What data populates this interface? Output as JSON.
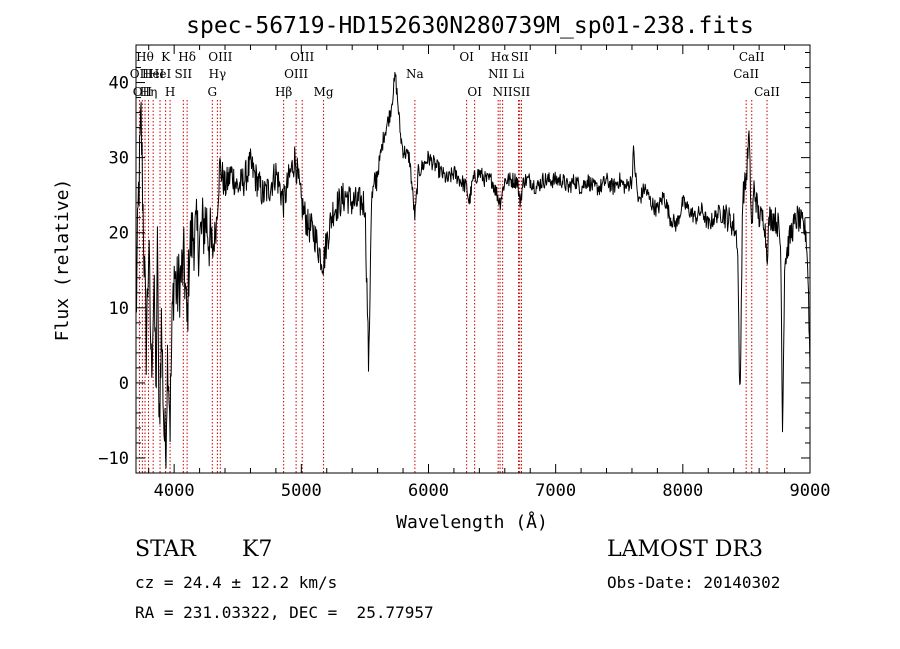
{
  "chart_data": {
    "type": "line",
    "title": "spec-56719-HD152630N280739M_sp01-238.fits",
    "xlabel": "Wavelength (Å)",
    "ylabel": "Flux (relative)",
    "xlim": [
      3700,
      9000
    ],
    "ylim": [
      -12,
      45
    ],
    "xticks": [
      4000,
      5000,
      6000,
      7000,
      8000,
      9000
    ],
    "xtick_labels": [
      "4000",
      "5000",
      "6000",
      "7000",
      "8000",
      "9000"
    ],
    "yticks": [
      -10,
      0,
      10,
      20,
      30,
      40
    ],
    "ytick_labels": [
      "−10",
      "0",
      "10",
      "20",
      "30",
      "40"
    ],
    "series": [
      {
        "name": "spectrum",
        "anchors": [
          [
            3700,
            8
          ],
          [
            3720,
            25
          ],
          [
            3740,
            35
          ],
          [
            3760,
            20
          ],
          [
            3780,
            5
          ],
          [
            3800,
            18
          ],
          [
            3820,
            2
          ],
          [
            3840,
            12
          ],
          [
            3860,
            0
          ],
          [
            3870,
            22
          ],
          [
            3880,
            -8
          ],
          [
            3900,
            8
          ],
          [
            3920,
            -6
          ],
          [
            3933,
            -9
          ],
          [
            3950,
            5
          ],
          [
            3968,
            -5
          ],
          [
            3985,
            8
          ],
          [
            4000,
            15
          ],
          [
            4020,
            12
          ],
          [
            4050,
            14
          ],
          [
            4080,
            16
          ],
          [
            4101,
            7
          ],
          [
            4120,
            18
          ],
          [
            4150,
            20
          ],
          [
            4200,
            19
          ],
          [
            4250,
            22
          ],
          [
            4300,
            17
          ],
          [
            4330,
            21
          ],
          [
            4360,
            29
          ],
          [
            4400,
            26
          ],
          [
            4450,
            28
          ],
          [
            4500,
            26
          ],
          [
            4550,
            27
          ],
          [
            4600,
            29
          ],
          [
            4650,
            27
          ],
          [
            4700,
            25
          ],
          [
            4750,
            26
          ],
          [
            4800,
            28
          ],
          [
            4861,
            24
          ],
          [
            4900,
            27
          ],
          [
            4950,
            30
          ],
          [
            5000,
            24
          ],
          [
            5050,
            21
          ],
          [
            5100,
            20
          ],
          [
            5150,
            17
          ],
          [
            5175,
            16
          ],
          [
            5200,
            19
          ],
          [
            5250,
            23
          ],
          [
            5300,
            24
          ],
          [
            5350,
            25
          ],
          [
            5400,
            24
          ],
          [
            5450,
            24
          ],
          [
            5480,
            24
          ],
          [
            5500,
            24
          ],
          [
            5520,
            10
          ],
          [
            5530,
            1
          ],
          [
            5550,
            24
          ],
          [
            5600,
            28
          ],
          [
            5650,
            33
          ],
          [
            5700,
            36
          ],
          [
            5740,
            41
          ],
          [
            5760,
            37
          ],
          [
            5780,
            33
          ],
          [
            5800,
            31
          ],
          [
            5850,
            30
          ],
          [
            5893,
            22
          ],
          [
            5920,
            28
          ],
          [
            5960,
            29
          ],
          [
            6000,
            30
          ],
          [
            6050,
            29
          ],
          [
            6100,
            28
          ],
          [
            6150,
            27
          ],
          [
            6200,
            28
          ],
          [
            6250,
            27
          ],
          [
            6300,
            26
          ],
          [
            6320,
            24
          ],
          [
            6350,
            27
          ],
          [
            6400,
            28
          ],
          [
            6450,
            27
          ],
          [
            6500,
            27
          ],
          [
            6563,
            24
          ],
          [
            6600,
            27
          ],
          [
            6650,
            27
          ],
          [
            6700,
            27
          ],
          [
            6717,
            24
          ],
          [
            6750,
            27
          ],
          [
            6800,
            27
          ],
          [
            6850,
            26
          ],
          [
            6900,
            27
          ],
          [
            6950,
            27
          ],
          [
            7000,
            27
          ],
          [
            7050,
            27
          ],
          [
            7100,
            26
          ],
          [
            7150,
            27
          ],
          [
            7200,
            26
          ],
          [
            7250,
            27
          ],
          [
            7300,
            26
          ],
          [
            7350,
            26
          ],
          [
            7400,
            27
          ],
          [
            7450,
            26
          ],
          [
            7500,
            27
          ],
          [
            7550,
            26
          ],
          [
            7600,
            27
          ],
          [
            7610,
            31
          ],
          [
            7650,
            24
          ],
          [
            7700,
            26
          ],
          [
            7750,
            24
          ],
          [
            7800,
            23
          ],
          [
            7850,
            25
          ],
          [
            7900,
            22
          ],
          [
            7950,
            21
          ],
          [
            8000,
            24
          ],
          [
            8050,
            23
          ],
          [
            8100,
            22
          ],
          [
            8150,
            23
          ],
          [
            8200,
            21
          ],
          [
            8250,
            22
          ],
          [
            8300,
            23
          ],
          [
            8350,
            22
          ],
          [
            8400,
            21
          ],
          [
            8430,
            19
          ],
          [
            8450,
            -4
          ],
          [
            8470,
            25
          ],
          [
            8498,
            27
          ],
          [
            8520,
            33
          ],
          [
            8542,
            20
          ],
          [
            8560,
            26
          ],
          [
            8600,
            22
          ],
          [
            8640,
            22
          ],
          [
            8662,
            17
          ],
          [
            8680,
            22
          ],
          [
            8720,
            22
          ],
          [
            8750,
            21
          ],
          [
            8770,
            18
          ],
          [
            8785,
            -7
          ],
          [
            8800,
            16
          ],
          [
            8850,
            20
          ],
          [
            8900,
            22
          ],
          [
            8940,
            21
          ],
          [
            8970,
            20
          ],
          [
            8985,
            14
          ],
          [
            9000,
            2
          ]
        ]
      }
    ],
    "line_markers": [
      {
        "x": 3727,
        "label": "OII",
        "row": 2
      },
      {
        "x": 3750,
        "label": "OII",
        "row": 3
      },
      {
        "x": 3771,
        "label": "Hθ",
        "row": 1
      },
      {
        "x": 3798,
        "label": "Hη",
        "row": 3
      },
      {
        "x": 3835,
        "label": "HeI",
        "row": 2
      },
      {
        "x": 3889,
        "label": "HeI",
        "row": 2
      },
      {
        "x": 3933,
        "label": "K",
        "row": 1
      },
      {
        "x": 3968,
        "label": "H",
        "row": 3
      },
      {
        "x": 4072,
        "label": "SII",
        "row": 2
      },
      {
        "x": 4102,
        "label": "Hδ",
        "row": 1
      },
      {
        "x": 4300,
        "label": "G",
        "row": 3
      },
      {
        "x": 4340,
        "label": "Hγ",
        "row": 2
      },
      {
        "x": 4363,
        "label": "OIII",
        "row": 1
      },
      {
        "x": 4861,
        "label": "Hβ",
        "row": 3
      },
      {
        "x": 4959,
        "label": "OIII",
        "row": 2
      },
      {
        "x": 5007,
        "label": "OIII",
        "row": 1
      },
      {
        "x": 5175,
        "label": "Mg",
        "row": 3
      },
      {
        "x": 5893,
        "label": "Na",
        "row": 2
      },
      {
        "x": 6300,
        "label": "OI",
        "row": 1
      },
      {
        "x": 6363,
        "label": "OI",
        "row": 3
      },
      {
        "x": 6548,
        "label": "NII",
        "row": 2
      },
      {
        "x": 6563,
        "label": "Hα",
        "row": 1
      },
      {
        "x": 6583,
        "label": "NII",
        "row": 3
      },
      {
        "x": 6708,
        "label": "Li",
        "row": 2
      },
      {
        "x": 6717,
        "label": "SII",
        "row": 1
      },
      {
        "x": 6731,
        "label": "SII",
        "row": 3
      },
      {
        "x": 8498,
        "label": "CaII",
        "row": 2
      },
      {
        "x": 8542,
        "label": "CaII",
        "row": 1
      },
      {
        "x": 8662,
        "label": "CaII",
        "row": 3
      }
    ]
  },
  "info": {
    "class_label": "STAR",
    "subclass": "K7",
    "survey": "LAMOST DR3",
    "cz": "cz = 24.4 ± 12.2 km/s",
    "obs_date": "Obs-Date: 20140302",
    "coords": "RA = 231.03322, DEC =  25.77957"
  }
}
